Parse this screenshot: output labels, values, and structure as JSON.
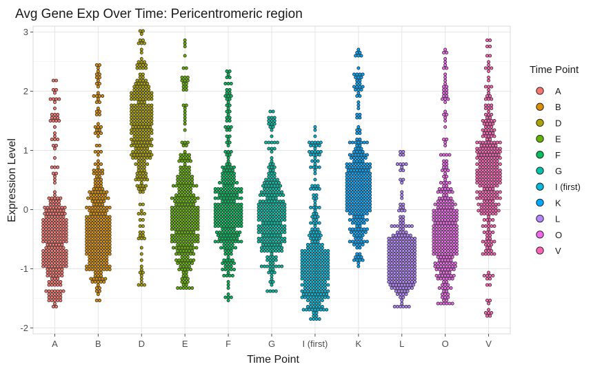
{
  "chart_data": {
    "type": "scatter",
    "subtype": "beeswarm",
    "title": "Avg Gene Exp Over Time: Pericentromeric region",
    "xlabel": "Time Point",
    "ylabel": "Expression Level",
    "ylim": [
      -2.1,
      3.1
    ],
    "yticks": [
      -2,
      -1,
      0,
      1,
      2,
      3
    ],
    "grid": true,
    "legend": {
      "title": "Time Point",
      "position": "right"
    },
    "point_outline": "#1a1a1a",
    "categories": [
      "A",
      "B",
      "D",
      "E",
      "F",
      "G",
      "I (first)",
      "K",
      "L",
      "O",
      "V"
    ],
    "series": [
      {
        "name": "A",
        "color": "#F8766D",
        "min": -1.62,
        "max": 2.2,
        "median": -0.6,
        "peak_offset": 0.35,
        "width": 0.55,
        "n": 320
      },
      {
        "name": "B",
        "color": "#DB8E00",
        "min": -1.55,
        "max": 2.45,
        "median": -0.45,
        "peak_offset": 0.4,
        "width": 0.55,
        "n": 330
      },
      {
        "name": "D",
        "color": "#AEA200",
        "min": -1.3,
        "max": 3.0,
        "median": 1.5,
        "peak_offset": 0.3,
        "width": 0.5,
        "n": 320
      },
      {
        "name": "E",
        "color": "#64B200",
        "min": -1.35,
        "max": 2.85,
        "median": -0.15,
        "peak_offset": 0.45,
        "width": 0.62,
        "n": 340
      },
      {
        "name": "F",
        "color": "#00BD5C",
        "min": -1.53,
        "max": 2.33,
        "median": -0.05,
        "peak_offset": 0.4,
        "width": 0.62,
        "n": 330
      },
      {
        "name": "G",
        "color": "#00C1A7",
        "min": -1.38,
        "max": 1.65,
        "median": -0.1,
        "peak_offset": 0.42,
        "width": 0.62,
        "n": 330
      },
      {
        "name": "I (first)",
        "color": "#00BADE",
        "min": -1.85,
        "max": 1.4,
        "median": -1.05,
        "peak_offset": 0.25,
        "width": 0.66,
        "n": 340
      },
      {
        "name": "K",
        "color": "#00A6FF",
        "min": -0.95,
        "max": 2.7,
        "median": 0.35,
        "peak_offset": 0.35,
        "width": 0.6,
        "n": 320
      },
      {
        "name": "L",
        "color": "#B385FF",
        "min": -1.65,
        "max": 0.98,
        "median": -0.85,
        "peak_offset": 0.22,
        "width": 0.62,
        "n": 330
      },
      {
        "name": "O",
        "color": "#EF67EB",
        "min": -1.6,
        "max": 2.72,
        "median": -0.45,
        "peak_offset": 0.5,
        "width": 0.55,
        "n": 330
      },
      {
        "name": "V",
        "color": "#FF63B6",
        "min": -1.8,
        "max": 2.88,
        "median": 0.6,
        "peak_offset": 0.6,
        "width": 0.55,
        "n": 330
      }
    ]
  }
}
